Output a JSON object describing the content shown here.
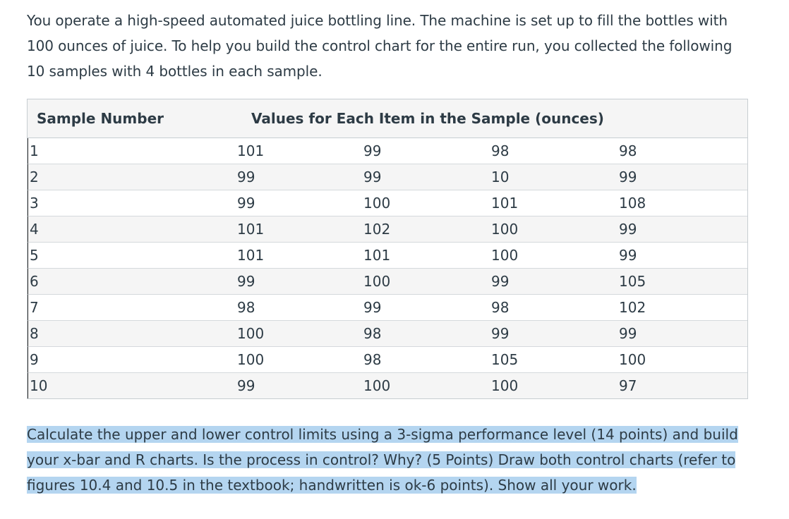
{
  "intro": "You operate a high-speed automated juice bottling line. The machine is set up to fill the bottles with 100 ounces of juice. To help you build the control chart for the entire run, you collected the following 10 samples with 4 bottles in each sample.",
  "table": {
    "headers": {
      "sample_number": "Sample Number",
      "values": "Values for Each Item in the Sample (ounces)"
    },
    "rows": [
      {
        "n": "1",
        "v": [
          "101",
          "99",
          "98",
          "98"
        ]
      },
      {
        "n": "2",
        "v": [
          "99",
          "99",
          "10",
          "99"
        ]
      },
      {
        "n": "3",
        "v": [
          "99",
          "100",
          "101",
          "108"
        ]
      },
      {
        "n": "4",
        "v": [
          "101",
          "102",
          "100",
          "99"
        ]
      },
      {
        "n": "5",
        "v": [
          "101",
          "101",
          "100",
          "99"
        ]
      },
      {
        "n": "6",
        "v": [
          "99",
          "100",
          "99",
          "105"
        ]
      },
      {
        "n": "7",
        "v": [
          "98",
          "99",
          "98",
          "102"
        ]
      },
      {
        "n": "8",
        "v": [
          "100",
          "98",
          "99",
          "99"
        ]
      },
      {
        "n": "9",
        "v": [
          "100",
          "98",
          "105",
          "100"
        ]
      },
      {
        "n": "10",
        "v": [
          "99",
          "100",
          "100",
          "97"
        ]
      }
    ]
  },
  "question": "Calculate the upper and lower control limits using a 3-sigma performance level (14 points) and build your x-bar and R charts. Is the process in control? Why? (5 Points) Draw both control charts (refer to figures 10.4 and 10.5 in the textbook; handwritten is ok-6 points). Show all your work.",
  "colors": {
    "text": "#2d3b45",
    "highlight": "#b4d5f0",
    "header_bg": "#f5f5f5",
    "border": "#c7cdd1"
  }
}
